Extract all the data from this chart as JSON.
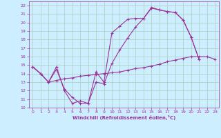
{
  "xlabel": "Windchill (Refroidissement éolien,°C)",
  "bg_color": "#cceeff",
  "grid_color": "#aaccbb",
  "line_color": "#993399",
  "xlim": [
    -0.5,
    23.5
  ],
  "ylim": [
    10,
    22.5
  ],
  "xticks": [
    0,
    1,
    2,
    3,
    4,
    5,
    6,
    7,
    8,
    9,
    10,
    11,
    12,
    13,
    14,
    15,
    16,
    17,
    18,
    19,
    20,
    21,
    22,
    23
  ],
  "yticks": [
    10,
    11,
    12,
    13,
    14,
    15,
    16,
    17,
    18,
    19,
    20,
    21,
    22
  ],
  "line1_x": [
    0,
    1,
    2,
    3,
    4,
    5,
    6,
    7,
    8,
    9,
    10,
    11,
    12,
    13,
    14,
    15,
    16,
    17,
    18,
    19,
    20,
    21
  ],
  "line1_y": [
    14.8,
    14.0,
    13.0,
    14.8,
    12.0,
    10.5,
    10.8,
    10.5,
    14.2,
    13.0,
    18.8,
    19.6,
    20.4,
    20.5,
    20.5,
    21.8,
    21.5,
    21.3,
    21.2,
    20.3,
    18.3,
    15.7
  ],
  "line2_x": [
    0,
    1,
    2,
    3,
    4,
    5,
    6,
    7,
    8,
    9,
    10,
    11,
    12,
    13,
    14,
    15,
    16,
    17,
    18,
    19,
    20,
    21
  ],
  "line2_y": [
    14.8,
    14.0,
    13.0,
    14.5,
    12.2,
    11.2,
    10.5,
    10.5,
    13.0,
    12.8,
    15.2,
    16.8,
    18.2,
    19.5,
    20.5,
    21.7,
    21.5,
    21.3,
    21.2,
    20.3,
    18.3,
    15.7
  ],
  "line3_x": [
    0,
    1,
    2,
    3,
    4,
    5,
    6,
    7,
    8,
    9,
    10,
    11,
    12,
    13,
    14,
    15,
    16,
    17,
    18,
    19,
    20,
    21,
    22,
    23
  ],
  "line3_y": [
    14.8,
    14.0,
    13.0,
    13.2,
    13.4,
    13.5,
    13.7,
    13.8,
    13.9,
    14.0,
    14.1,
    14.2,
    14.4,
    14.6,
    14.7,
    14.9,
    15.1,
    15.4,
    15.6,
    15.8,
    16.0,
    16.0,
    16.0,
    15.7
  ]
}
